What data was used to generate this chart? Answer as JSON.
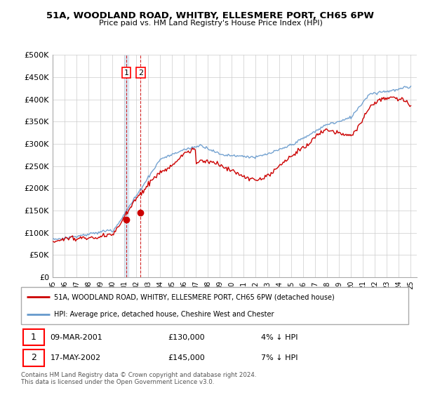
{
  "title": "51A, WOODLAND ROAD, WHITBY, ELLESMERE PORT, CH65 6PW",
  "subtitle": "Price paid vs. HM Land Registry's House Price Index (HPI)",
  "ylim": [
    0,
    500000
  ],
  "yticks": [
    0,
    50000,
    100000,
    150000,
    200000,
    250000,
    300000,
    350000,
    400000,
    450000,
    500000
  ],
  "ytick_labels": [
    "£0",
    "£50K",
    "£100K",
    "£150K",
    "£200K",
    "£250K",
    "£300K",
    "£350K",
    "£400K",
    "£450K",
    "£500K"
  ],
  "background_color": "#ffffff",
  "plot_bg_color": "#ffffff",
  "grid_color": "#cccccc",
  "hpi_color": "#6699cc",
  "price_color": "#cc0000",
  "dashed_line_color": "#cc0000",
  "band_color": "#dce9f5",
  "transaction1_date": "09-MAR-2001",
  "transaction1_price": 130000,
  "transaction1_pct": "4% ↓ HPI",
  "transaction1_year": 2001.17,
  "transaction2_date": "17-MAY-2002",
  "transaction2_price": 145000,
  "transaction2_pct": "7% ↓ HPI",
  "transaction2_year": 2002.37,
  "legend_label1": "51A, WOODLAND ROAD, WHITBY, ELLESMERE PORT, CH65 6PW (detached house)",
  "legend_label2": "HPI: Average price, detached house, Cheshire West and Chester",
  "footer1": "Contains HM Land Registry data © Crown copyright and database right 2024.",
  "footer2": "This data is licensed under the Open Government Licence v3.0.",
  "x_start_year": 1995,
  "x_end_year": 2025,
  "xtick_labels": [
    "95",
    "96",
    "97",
    "98",
    "99",
    "00",
    "01",
    "02",
    "03",
    "04",
    "05",
    "06",
    "07",
    "08",
    "09",
    "10",
    "11",
    "12",
    "13",
    "14",
    "15",
    "16",
    "17",
    "18",
    "19",
    "20",
    "21",
    "22",
    "23",
    "24",
    "25"
  ]
}
